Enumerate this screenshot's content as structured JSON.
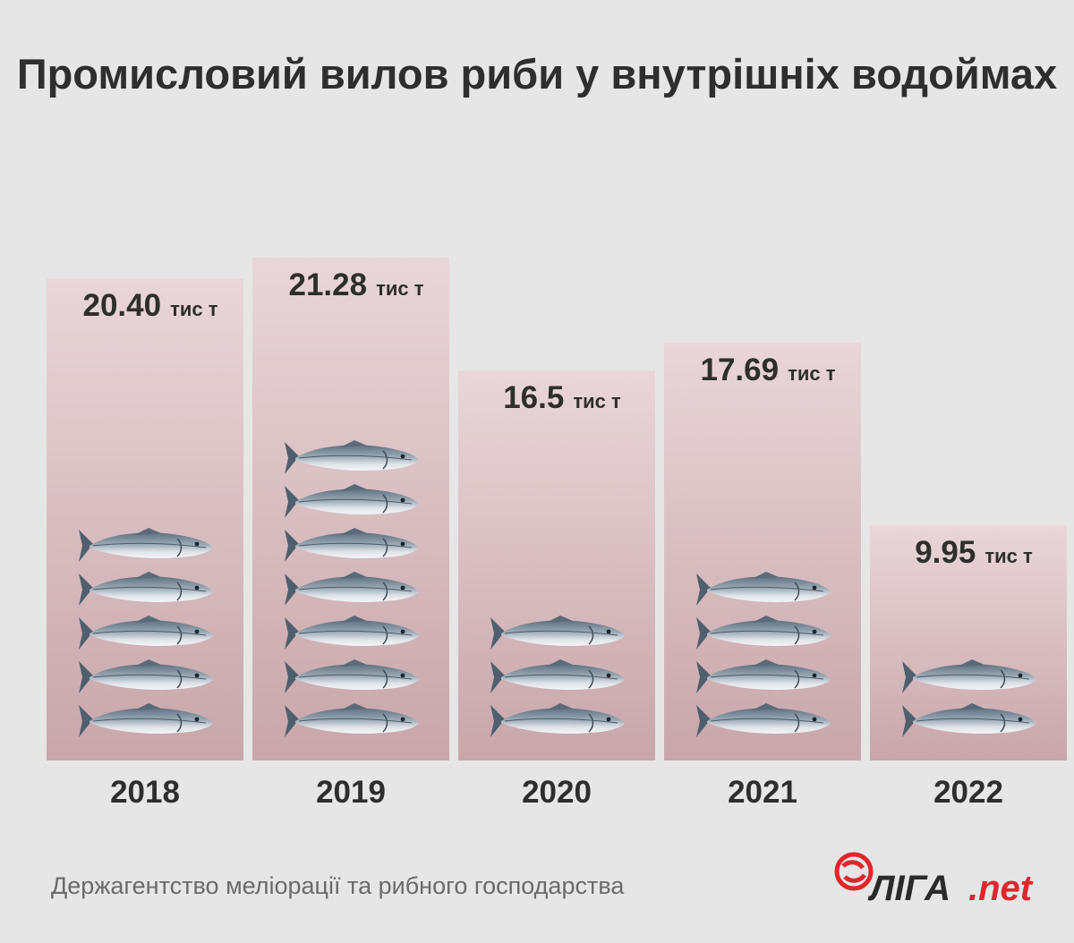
{
  "title": "Промисловий вилов риби у внутрішніх водоймах",
  "source": "Держагентство меліорації та рибного господарства",
  "logo": {
    "brand": "ЛIГА",
    "suffix": ".net",
    "icon": "liga-net-logo-icon"
  },
  "colors": {
    "background": "#e6e6e6",
    "bar_top": "#e9d6d8",
    "bar_bottom": "#c8a6aa",
    "fish_body": "#7d8e9c",
    "text": "#2e2e2e",
    "logo_red": "#e0262d"
  },
  "chart_data": {
    "type": "bar",
    "categories": [
      "2018",
      "2019",
      "2020",
      "2021",
      "2022"
    ],
    "values": [
      20.4,
      21.28,
      16.5,
      17.69,
      9.95
    ],
    "value_labels": [
      "20.40",
      "21.28",
      "16.5",
      "17.69",
      "9.95"
    ],
    "unit": "тис т",
    "fish_icons": [
      5,
      7,
      3,
      4,
      2
    ],
    "ylim": [
      0,
      21.28
    ]
  }
}
